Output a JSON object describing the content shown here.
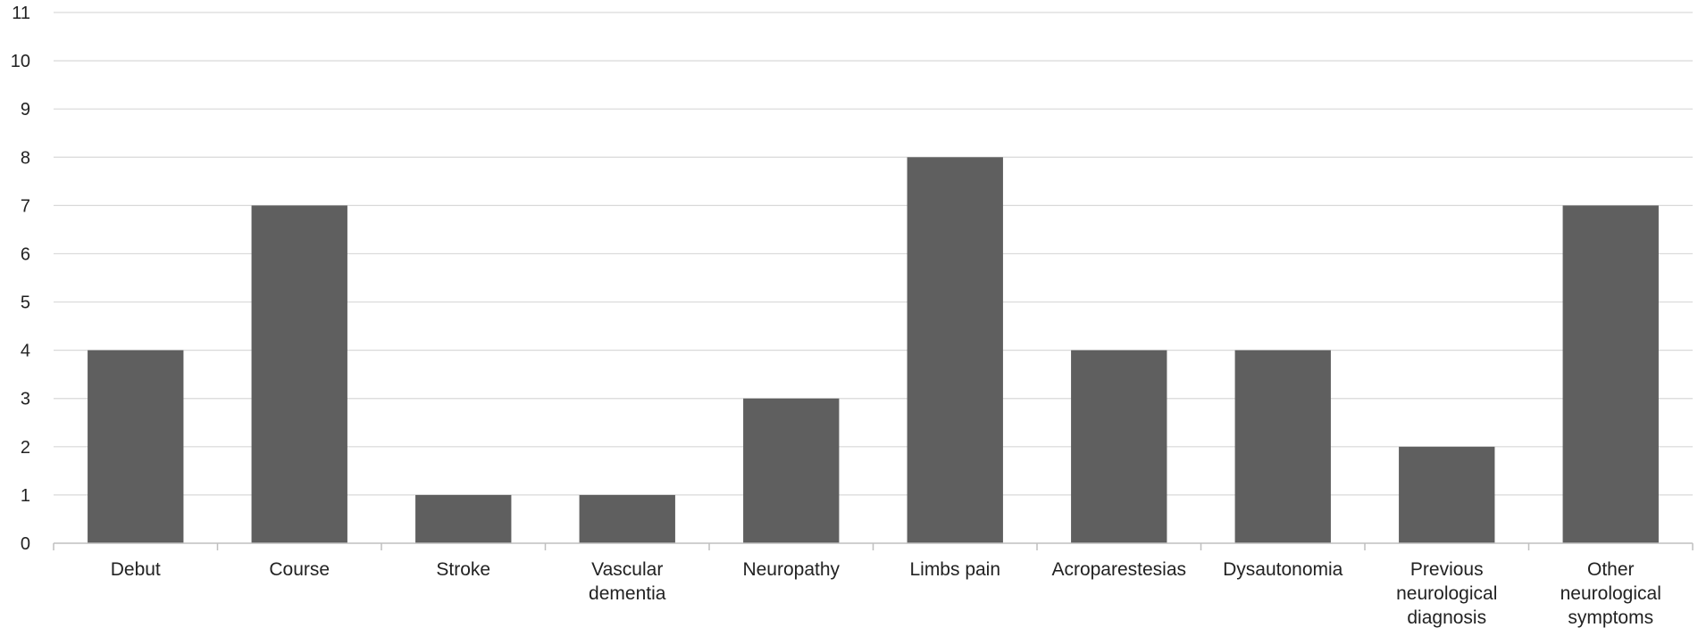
{
  "chart_data": {
    "type": "bar",
    "title": "",
    "xlabel": "",
    "ylabel": "",
    "ylim": [
      0,
      11
    ],
    "yticks": [
      0,
      1,
      2,
      3,
      4,
      5,
      6,
      7,
      8,
      9,
      10,
      11
    ],
    "grid": true,
    "legend": "none",
    "categories": [
      [
        "Debut"
      ],
      [
        "Course"
      ],
      [
        "Stroke"
      ],
      [
        "Vascular",
        "dementia"
      ],
      [
        "Neuropathy"
      ],
      [
        "Limbs pain"
      ],
      [
        "Acroparestesias"
      ],
      [
        "Dysautonomia"
      ],
      [
        "Previous",
        "neurological",
        "diagnosis"
      ],
      [
        "Other",
        "neurological",
        "symptoms"
      ]
    ],
    "values": [
      4,
      7,
      1,
      1,
      3,
      8,
      4,
      4,
      2,
      7
    ],
    "colors": {
      "bar": "#5f5f5f",
      "grid": "#d9d9d9",
      "axis": "#bfbfbf"
    }
  }
}
